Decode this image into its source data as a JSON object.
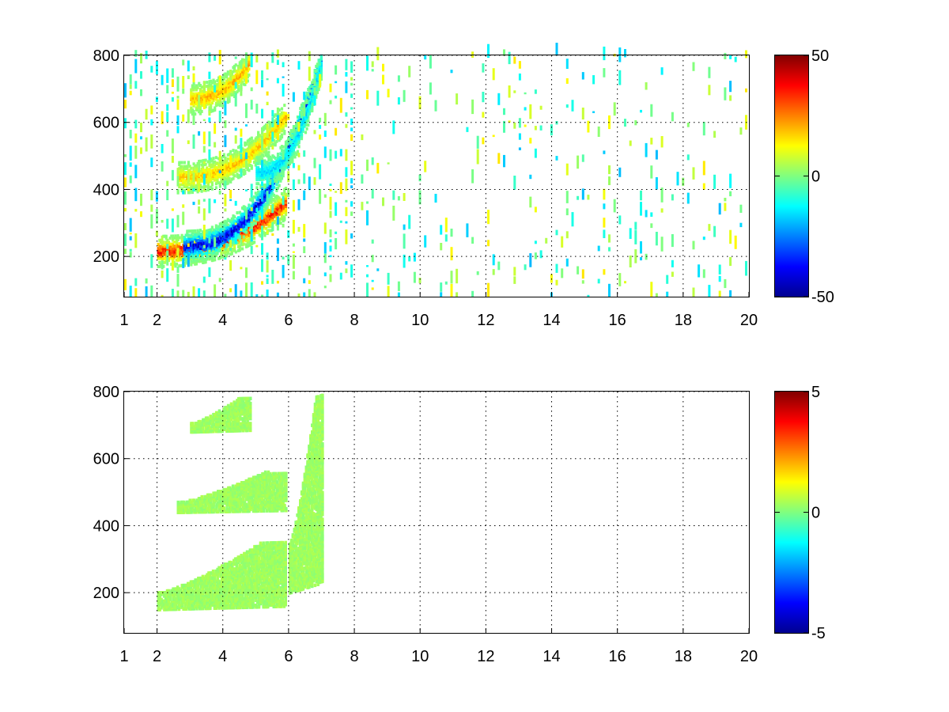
{
  "chart_data": [
    {
      "type": "heatmap",
      "title": "",
      "xlabel": "",
      "ylabel": "",
      "x_ticks": [
        1,
        2,
        4,
        6,
        8,
        10,
        12,
        14,
        16,
        18,
        20
      ],
      "x_tick_labels": [
        "1",
        "2",
        "4",
        "6",
        "8",
        "10",
        "12",
        "14",
        "16",
        "18",
        "20"
      ],
      "xlim": [
        1,
        20
      ],
      "y_ticks": [
        200,
        400,
        600,
        800
      ],
      "y_tick_labels": [
        "200",
        "400",
        "600",
        "800"
      ],
      "ylim": [
        80,
        800
      ],
      "grid": true,
      "colormap": "jet",
      "clim": [
        -50,
        50
      ],
      "colorbar_ticks": [
        50,
        0,
        -50
      ],
      "colorbar_tick_labels": [
        "50",
        "0",
        "-50"
      ],
      "features": [
        {
          "kind": "curve",
          "label": "",
          "x_range": [
            2.0,
            5.9
          ],
          "y_start": 215,
          "y_end": 360,
          "value": 38
        },
        {
          "kind": "curve",
          "label": "",
          "x_range": [
            2.8,
            7.0
          ],
          "y_start": 230,
          "y_end": 790,
          "value": -45
        },
        {
          "kind": "curve",
          "label": "",
          "x_range": [
            2.6,
            5.9
          ],
          "y_start": 435,
          "y_end": 620,
          "value": 20
        },
        {
          "kind": "curve",
          "label": "",
          "x_range": [
            5.0,
            7.0
          ],
          "y_start": 450,
          "y_end": 790,
          "value": -18
        },
        {
          "kind": "curve",
          "label": "",
          "x_range": [
            3.0,
            4.8
          ],
          "y_start": 670,
          "y_end": 780,
          "value": 22
        },
        {
          "kind": "noise",
          "label": "",
          "x_range": [
            1,
            20
          ],
          "y_range": [
            80,
            800
          ],
          "value_range": [
            -20,
            15
          ]
        }
      ]
    },
    {
      "type": "heatmap",
      "title": "",
      "xlabel": "",
      "ylabel": "",
      "x_ticks": [
        1,
        2,
        4,
        6,
        8,
        10,
        12,
        14,
        16,
        18,
        20
      ],
      "x_tick_labels": [
        "1",
        "2",
        "4",
        "6",
        "8",
        "10",
        "12",
        "14",
        "16",
        "18",
        "20"
      ],
      "xlim": [
        1,
        20
      ],
      "y_ticks": [
        200,
        400,
        600,
        800
      ],
      "y_tick_labels": [
        "200",
        "400",
        "600",
        "800"
      ],
      "ylim": [
        80,
        800
      ],
      "grid": true,
      "colormap": "jet",
      "clim": [
        -5,
        5
      ],
      "colorbar_ticks": [
        5,
        0,
        -5
      ],
      "colorbar_tick_labels": [
        "5",
        "0",
        "-5"
      ],
      "features": [
        {
          "kind": "band",
          "label": "",
          "x_range": [
            2.0,
            5.9
          ],
          "y_start": 150,
          "y_end": 350,
          "value": 0.3
        },
        {
          "kind": "band",
          "label": "",
          "x_range": [
            6.0,
            7.0
          ],
          "y_start": 200,
          "y_end": 790,
          "value": 0.3
        },
        {
          "kind": "band",
          "label": "",
          "x_range": [
            2.6,
            5.9
          ],
          "y_start": 440,
          "y_end": 560,
          "value": 0.3
        },
        {
          "kind": "band",
          "label": "",
          "x_range": [
            3.0,
            4.8
          ],
          "y_start": 680,
          "y_end": 780,
          "value": 0.3
        }
      ]
    }
  ]
}
